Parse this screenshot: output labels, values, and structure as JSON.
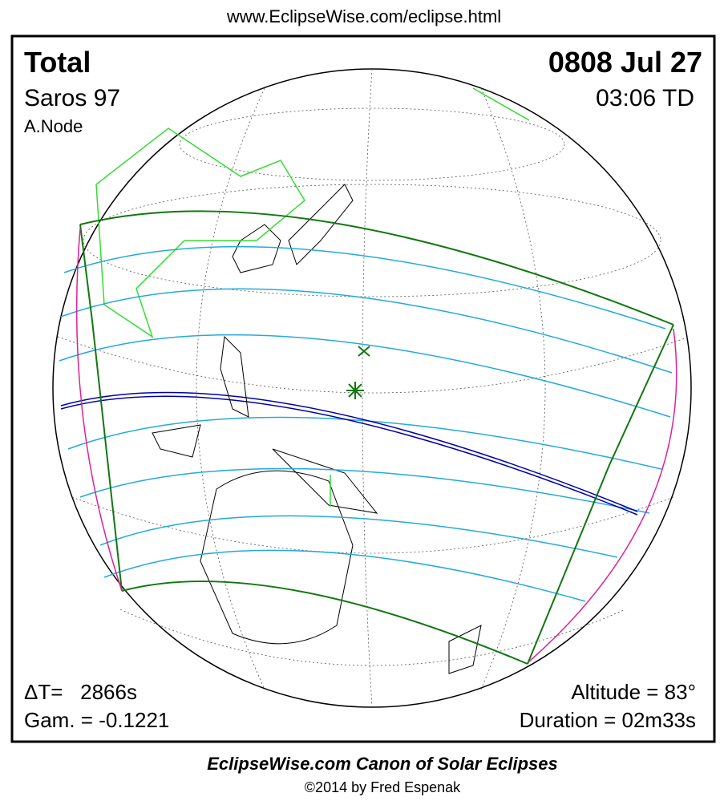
{
  "header": {
    "url": "www.EclipseWise.com/eclipse.html"
  },
  "eclipse": {
    "type": "Total",
    "saros": "Saros  97",
    "node": "A.Node",
    "date": "0808 Jul 27",
    "time": "03:06 TD",
    "delta_t": "ΔT=   2866s",
    "gamma": "Gam. = -0.1221",
    "altitude": "Altitude = 83°",
    "duration": "Duration = 02m33s"
  },
  "footer": {
    "title": "EclipseWise.com Canon of Solar Eclipses",
    "copyright": "©2014 by Fred Espenak"
  }
}
